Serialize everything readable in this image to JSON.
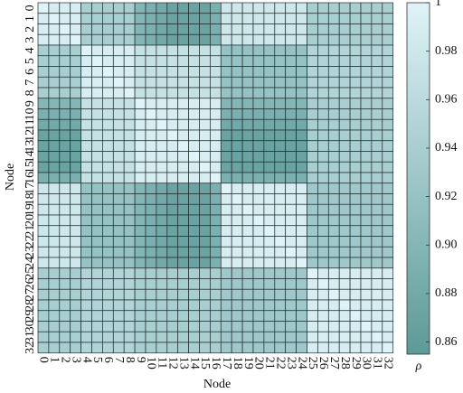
{
  "chart_data": {
    "type": "heatmap",
    "x_label": "Node",
    "y_label": "Node",
    "colorbar_label": "ρ",
    "categories": [
      "0",
      "1",
      "2",
      "3",
      "4",
      "5",
      "6",
      "7",
      "8",
      "9",
      "10",
      "11",
      "12",
      "13",
      "14",
      "15",
      "16",
      "17",
      "18",
      "19",
      "20",
      "21",
      "22",
      "23",
      "24",
      "25",
      "26",
      "27",
      "28",
      "29",
      "30",
      "31",
      "32"
    ],
    "values": [
      [
        1,
        0.99,
        0.99,
        0.99,
        0.94,
        0.94,
        0.94,
        0.94,
        0.94,
        0.9,
        0.89,
        0.88,
        0.87,
        0.87,
        0.87,
        0.87,
        0.89,
        0.98,
        0.98,
        0.98,
        0.98,
        0.98,
        0.98,
        0.98,
        0.98,
        0.94,
        0.94,
        0.94,
        0.94,
        0.94,
        0.94,
        0.94,
        0.94
      ],
      [
        0.99,
        1,
        0.99,
        0.99,
        0.94,
        0.94,
        0.94,
        0.94,
        0.94,
        0.9,
        0.89,
        0.88,
        0.87,
        0.87,
        0.87,
        0.87,
        0.89,
        0.98,
        0.98,
        0.98,
        0.98,
        0.98,
        0.98,
        0.98,
        0.98,
        0.94,
        0.94,
        0.94,
        0.94,
        0.94,
        0.94,
        0.94,
        0.94
      ],
      [
        0.99,
        0.99,
        1,
        0.99,
        0.94,
        0.94,
        0.94,
        0.94,
        0.94,
        0.9,
        0.89,
        0.88,
        0.87,
        0.87,
        0.87,
        0.87,
        0.89,
        0.98,
        0.98,
        0.98,
        0.98,
        0.98,
        0.98,
        0.98,
        0.98,
        0.94,
        0.94,
        0.94,
        0.94,
        0.94,
        0.94,
        0.94,
        0.94
      ],
      [
        0.99,
        0.99,
        0.99,
        1,
        0.94,
        0.94,
        0.94,
        0.94,
        0.94,
        0.9,
        0.89,
        0.88,
        0.87,
        0.87,
        0.87,
        0.87,
        0.89,
        0.98,
        0.98,
        0.98,
        0.98,
        0.98,
        0.98,
        0.98,
        0.98,
        0.94,
        0.94,
        0.94,
        0.94,
        0.94,
        0.94,
        0.94,
        0.94
      ],
      [
        0.94,
        0.94,
        0.94,
        0.94,
        1,
        0.99,
        0.99,
        0.99,
        0.99,
        0.97,
        0.97,
        0.97,
        0.97,
        0.97,
        0.97,
        0.97,
        0.97,
        0.92,
        0.92,
        0.92,
        0.92,
        0.92,
        0.92,
        0.92,
        0.92,
        0.95,
        0.95,
        0.95,
        0.95,
        0.95,
        0.95,
        0.95,
        0.95
      ],
      [
        0.94,
        0.94,
        0.94,
        0.94,
        0.99,
        1,
        0.99,
        0.99,
        0.99,
        0.97,
        0.97,
        0.97,
        0.97,
        0.97,
        0.97,
        0.97,
        0.97,
        0.92,
        0.92,
        0.92,
        0.92,
        0.92,
        0.92,
        0.92,
        0.92,
        0.95,
        0.95,
        0.95,
        0.95,
        0.95,
        0.95,
        0.95,
        0.95
      ],
      [
        0.94,
        0.94,
        0.94,
        0.94,
        0.99,
        0.99,
        1,
        0.99,
        0.99,
        0.97,
        0.97,
        0.97,
        0.97,
        0.97,
        0.97,
        0.97,
        0.97,
        0.92,
        0.92,
        0.92,
        0.92,
        0.92,
        0.92,
        0.92,
        0.92,
        0.95,
        0.95,
        0.95,
        0.95,
        0.95,
        0.95,
        0.95,
        0.95
      ],
      [
        0.94,
        0.94,
        0.94,
        0.94,
        0.99,
        0.99,
        0.99,
        1,
        0.99,
        0.97,
        0.97,
        0.97,
        0.97,
        0.97,
        0.97,
        0.97,
        0.97,
        0.92,
        0.92,
        0.92,
        0.92,
        0.92,
        0.92,
        0.92,
        0.92,
        0.95,
        0.95,
        0.95,
        0.95,
        0.95,
        0.95,
        0.95,
        0.95
      ],
      [
        0.94,
        0.94,
        0.94,
        0.94,
        0.99,
        0.99,
        0.99,
        0.99,
        1,
        0.97,
        0.97,
        0.97,
        0.97,
        0.97,
        0.97,
        0.97,
        0.97,
        0.92,
        0.92,
        0.92,
        0.92,
        0.92,
        0.92,
        0.92,
        0.92,
        0.95,
        0.95,
        0.95,
        0.95,
        0.95,
        0.95,
        0.95,
        0.95
      ],
      [
        0.9,
        0.9,
        0.9,
        0.9,
        0.97,
        0.97,
        0.97,
        0.97,
        0.97,
        1,
        0.99,
        0.99,
        0.99,
        0.99,
        0.99,
        0.99,
        0.99,
        0.9,
        0.9,
        0.9,
        0.9,
        0.9,
        0.9,
        0.9,
        0.9,
        0.94,
        0.94,
        0.94,
        0.94,
        0.94,
        0.94,
        0.94,
        0.94
      ],
      [
        0.89,
        0.89,
        0.89,
        0.89,
        0.97,
        0.97,
        0.97,
        0.97,
        0.97,
        0.99,
        1,
        0.99,
        0.99,
        0.99,
        0.99,
        0.99,
        0.99,
        0.89,
        0.89,
        0.89,
        0.89,
        0.89,
        0.89,
        0.89,
        0.89,
        0.94,
        0.94,
        0.94,
        0.94,
        0.94,
        0.94,
        0.94,
        0.94
      ],
      [
        0.88,
        0.88,
        0.88,
        0.88,
        0.97,
        0.97,
        0.97,
        0.97,
        0.97,
        0.99,
        0.99,
        1,
        0.99,
        0.99,
        0.99,
        0.99,
        0.99,
        0.88,
        0.88,
        0.88,
        0.88,
        0.88,
        0.88,
        0.88,
        0.88,
        0.94,
        0.94,
        0.94,
        0.94,
        0.94,
        0.94,
        0.94,
        0.94
      ],
      [
        0.87,
        0.87,
        0.87,
        0.87,
        0.97,
        0.97,
        0.97,
        0.97,
        0.97,
        0.99,
        0.99,
        0.99,
        1,
        0.99,
        0.99,
        0.99,
        0.99,
        0.87,
        0.87,
        0.87,
        0.87,
        0.87,
        0.87,
        0.87,
        0.87,
        0.94,
        0.94,
        0.94,
        0.94,
        0.94,
        0.94,
        0.94,
        0.94
      ],
      [
        0.87,
        0.87,
        0.87,
        0.87,
        0.97,
        0.97,
        0.97,
        0.97,
        0.97,
        0.99,
        0.99,
        0.99,
        0.99,
        1,
        0.99,
        0.99,
        0.99,
        0.87,
        0.87,
        0.87,
        0.87,
        0.87,
        0.87,
        0.87,
        0.87,
        0.94,
        0.94,
        0.94,
        0.94,
        0.94,
        0.94,
        0.94,
        0.94
      ],
      [
        0.87,
        0.87,
        0.87,
        0.87,
        0.97,
        0.97,
        0.97,
        0.97,
        0.97,
        0.99,
        0.99,
        0.99,
        0.99,
        0.99,
        1,
        0.99,
        0.99,
        0.87,
        0.87,
        0.87,
        0.87,
        0.87,
        0.87,
        0.87,
        0.87,
        0.94,
        0.94,
        0.94,
        0.94,
        0.94,
        0.94,
        0.94,
        0.94
      ],
      [
        0.87,
        0.87,
        0.87,
        0.87,
        0.97,
        0.97,
        0.97,
        0.97,
        0.97,
        0.99,
        0.99,
        0.99,
        0.99,
        0.99,
        0.99,
        1,
        0.99,
        0.87,
        0.87,
        0.87,
        0.87,
        0.87,
        0.87,
        0.87,
        0.87,
        0.94,
        0.94,
        0.94,
        0.94,
        0.94,
        0.94,
        0.94,
        0.94
      ],
      [
        0.89,
        0.89,
        0.89,
        0.89,
        0.97,
        0.97,
        0.97,
        0.97,
        0.97,
        0.99,
        0.99,
        0.99,
        0.99,
        0.99,
        0.99,
        0.99,
        1,
        0.89,
        0.89,
        0.89,
        0.89,
        0.89,
        0.89,
        0.89,
        0.89,
        0.94,
        0.94,
        0.94,
        0.94,
        0.94,
        0.94,
        0.94,
        0.94
      ],
      [
        0.98,
        0.98,
        0.98,
        0.98,
        0.92,
        0.92,
        0.92,
        0.92,
        0.92,
        0.9,
        0.89,
        0.88,
        0.87,
        0.87,
        0.87,
        0.87,
        0.89,
        1,
        0.99,
        0.99,
        0.99,
        0.99,
        0.99,
        0.99,
        0.99,
        0.93,
        0.93,
        0.93,
        0.93,
        0.93,
        0.93,
        0.93,
        0.93
      ],
      [
        0.98,
        0.98,
        0.98,
        0.98,
        0.92,
        0.92,
        0.92,
        0.92,
        0.92,
        0.9,
        0.89,
        0.88,
        0.87,
        0.87,
        0.87,
        0.87,
        0.89,
        0.99,
        1,
        0.99,
        0.99,
        0.99,
        0.99,
        0.99,
        0.99,
        0.93,
        0.93,
        0.93,
        0.93,
        0.93,
        0.93,
        0.93,
        0.93
      ],
      [
        0.98,
        0.98,
        0.98,
        0.98,
        0.92,
        0.92,
        0.92,
        0.92,
        0.92,
        0.9,
        0.89,
        0.88,
        0.87,
        0.87,
        0.87,
        0.87,
        0.89,
        0.99,
        0.99,
        1,
        0.99,
        0.99,
        0.99,
        0.99,
        0.99,
        0.93,
        0.93,
        0.93,
        0.93,
        0.93,
        0.93,
        0.93,
        0.93
      ],
      [
        0.98,
        0.98,
        0.98,
        0.98,
        0.92,
        0.92,
        0.92,
        0.92,
        0.92,
        0.9,
        0.89,
        0.88,
        0.87,
        0.87,
        0.87,
        0.87,
        0.89,
        0.99,
        0.99,
        0.99,
        1,
        0.99,
        0.99,
        0.99,
        0.99,
        0.93,
        0.93,
        0.93,
        0.93,
        0.93,
        0.93,
        0.93,
        0.93
      ],
      [
        0.98,
        0.98,
        0.98,
        0.98,
        0.92,
        0.92,
        0.92,
        0.92,
        0.92,
        0.9,
        0.89,
        0.88,
        0.87,
        0.87,
        0.87,
        0.87,
        0.89,
        0.99,
        0.99,
        0.99,
        0.99,
        1,
        0.99,
        0.99,
        0.99,
        0.93,
        0.93,
        0.93,
        0.93,
        0.93,
        0.93,
        0.93,
        0.93
      ],
      [
        0.98,
        0.98,
        0.98,
        0.98,
        0.92,
        0.92,
        0.92,
        0.92,
        0.92,
        0.9,
        0.89,
        0.88,
        0.87,
        0.87,
        0.87,
        0.87,
        0.89,
        0.99,
        0.99,
        0.99,
        0.99,
        0.99,
        1,
        0.99,
        0.99,
        0.93,
        0.93,
        0.93,
        0.93,
        0.93,
        0.93,
        0.93,
        0.93
      ],
      [
        0.98,
        0.98,
        0.98,
        0.98,
        0.92,
        0.92,
        0.92,
        0.92,
        0.92,
        0.9,
        0.89,
        0.88,
        0.87,
        0.87,
        0.87,
        0.87,
        0.89,
        0.99,
        0.99,
        0.99,
        0.99,
        0.99,
        0.99,
        1,
        0.99,
        0.93,
        0.93,
        0.93,
        0.93,
        0.93,
        0.93,
        0.93,
        0.93
      ],
      [
        0.98,
        0.98,
        0.98,
        0.98,
        0.92,
        0.92,
        0.92,
        0.92,
        0.92,
        0.9,
        0.89,
        0.88,
        0.87,
        0.87,
        0.87,
        0.87,
        0.89,
        0.99,
        0.99,
        0.99,
        0.99,
        0.99,
        0.99,
        0.99,
        1,
        0.93,
        0.93,
        0.93,
        0.93,
        0.93,
        0.93,
        0.93,
        0.93
      ],
      [
        0.94,
        0.94,
        0.94,
        0.94,
        0.95,
        0.95,
        0.95,
        0.95,
        0.95,
        0.94,
        0.94,
        0.94,
        0.94,
        0.94,
        0.94,
        0.94,
        0.94,
        0.93,
        0.93,
        0.93,
        0.93,
        0.93,
        0.93,
        0.93,
        0.93,
        1,
        0.99,
        0.99,
        0.99,
        0.99,
        0.99,
        0.99,
        0.99
      ],
      [
        0.94,
        0.94,
        0.94,
        0.94,
        0.95,
        0.95,
        0.95,
        0.95,
        0.95,
        0.94,
        0.94,
        0.94,
        0.94,
        0.94,
        0.94,
        0.94,
        0.94,
        0.93,
        0.93,
        0.93,
        0.93,
        0.93,
        0.93,
        0.93,
        0.93,
        0.99,
        1,
        0.99,
        0.99,
        0.99,
        0.99,
        0.99,
        0.99
      ],
      [
        0.94,
        0.94,
        0.94,
        0.94,
        0.95,
        0.95,
        0.95,
        0.95,
        0.95,
        0.94,
        0.94,
        0.94,
        0.94,
        0.94,
        0.94,
        0.94,
        0.94,
        0.93,
        0.93,
        0.93,
        0.93,
        0.93,
        0.93,
        0.93,
        0.93,
        0.99,
        0.99,
        1,
        0.99,
        0.99,
        0.99,
        0.99,
        0.99
      ],
      [
        0.94,
        0.94,
        0.94,
        0.94,
        0.95,
        0.95,
        0.95,
        0.95,
        0.95,
        0.94,
        0.94,
        0.94,
        0.94,
        0.94,
        0.94,
        0.94,
        0.94,
        0.93,
        0.93,
        0.93,
        0.93,
        0.93,
        0.93,
        0.93,
        0.93,
        0.99,
        0.99,
        0.99,
        1,
        0.99,
        0.99,
        0.99,
        0.99
      ],
      [
        0.94,
        0.94,
        0.94,
        0.94,
        0.95,
        0.95,
        0.95,
        0.95,
        0.95,
        0.94,
        0.94,
        0.94,
        0.94,
        0.94,
        0.94,
        0.94,
        0.94,
        0.93,
        0.93,
        0.93,
        0.93,
        0.93,
        0.93,
        0.93,
        0.93,
        0.99,
        0.99,
        0.99,
        0.99,
        1,
        0.99,
        0.99,
        0.99
      ],
      [
        0.94,
        0.94,
        0.94,
        0.94,
        0.95,
        0.95,
        0.95,
        0.95,
        0.95,
        0.94,
        0.94,
        0.94,
        0.94,
        0.94,
        0.94,
        0.94,
        0.94,
        0.93,
        0.93,
        0.93,
        0.93,
        0.93,
        0.93,
        0.93,
        0.93,
        0.99,
        0.99,
        0.99,
        0.99,
        0.99,
        1,
        0.99,
        0.99
      ],
      [
        0.94,
        0.94,
        0.94,
        0.94,
        0.95,
        0.95,
        0.95,
        0.95,
        0.95,
        0.94,
        0.94,
        0.94,
        0.94,
        0.94,
        0.94,
        0.94,
        0.94,
        0.93,
        0.93,
        0.93,
        0.93,
        0.93,
        0.93,
        0.93,
        0.93,
        0.99,
        0.99,
        0.99,
        0.99,
        0.99,
        0.99,
        1,
        0.99
      ],
      [
        0.94,
        0.94,
        0.94,
        0.94,
        0.95,
        0.95,
        0.95,
        0.95,
        0.95,
        0.94,
        0.94,
        0.94,
        0.94,
        0.94,
        0.94,
        0.94,
        0.94,
        0.93,
        0.93,
        0.93,
        0.93,
        0.93,
        0.93,
        0.93,
        0.93,
        0.99,
        0.99,
        0.99,
        0.99,
        0.99,
        0.99,
        0.99,
        1
      ]
    ],
    "clim": [
      0.855,
      1
    ],
    "cticks": [
      0.86,
      0.88,
      {
        "value": 0.9,
        "label": "0.90"
      },
      0.92,
      0.94,
      0.96,
      0.98,
      1
    ],
    "colors": [
      "#5c9a98",
      "#e0f3f8"
    ]
  }
}
